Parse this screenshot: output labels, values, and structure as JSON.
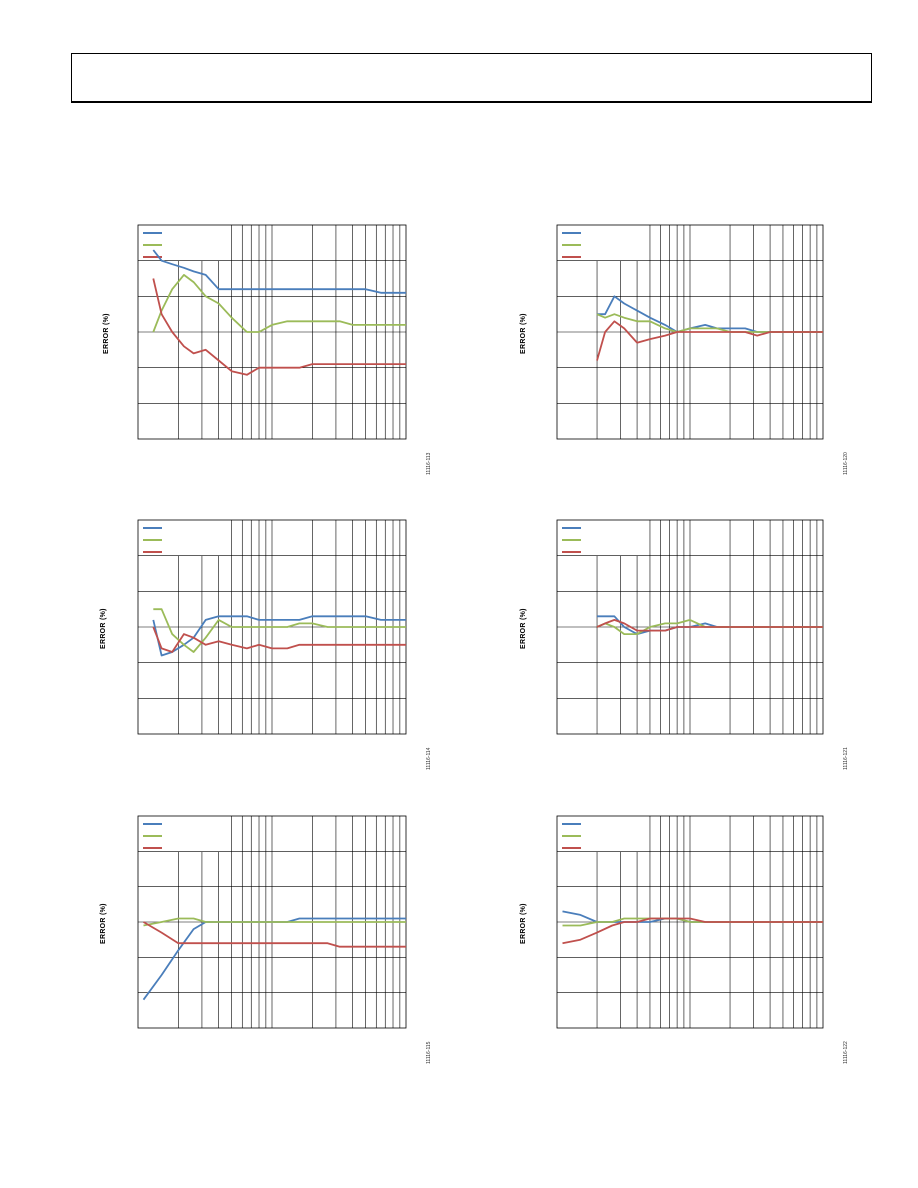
{
  "colors": {
    "blue": "#4a7ebb",
    "green": "#9bbb59",
    "red": "#c0504d",
    "grid": "#000000"
  },
  "charts_common": {
    "ylabel": "ERROR (%)",
    "legend_entries": 3
  },
  "chart_data": [
    {
      "type": "line",
      "ylabel": "ERROR (%)",
      "figure_id": "11116-113",
      "x_scale": "log",
      "xlim": [
        1,
        100
      ],
      "y_levels": 6,
      "series": [
        {
          "color": "blue",
          "x": [
            1.3,
            1.5,
            1.8,
            2.2,
            2.6,
            3.2,
            4,
            5,
            6.5,
            8,
            10,
            13,
            16,
            20,
            26,
            32,
            40,
            50,
            65,
            80,
            100
          ],
          "y": [
            0.23,
            0.2,
            0.19,
            0.18,
            0.17,
            0.16,
            0.12,
            0.12,
            0.12,
            0.12,
            0.12,
            0.12,
            0.12,
            0.12,
            0.12,
            0.12,
            0.12,
            0.12,
            0.11,
            0.11,
            0.11
          ]
        },
        {
          "color": "green",
          "x": [
            1.3,
            1.5,
            1.8,
            2.2,
            2.6,
            3.2,
            4,
            5,
            6.5,
            8,
            10,
            13,
            16,
            20,
            26,
            32,
            40,
            50,
            65,
            80,
            100
          ],
          "y": [
            0.0,
            0.06,
            0.12,
            0.16,
            0.14,
            0.1,
            0.08,
            0.04,
            0.0,
            0.0,
            0.02,
            0.03,
            0.03,
            0.03,
            0.03,
            0.03,
            0.02,
            0.02,
            0.02,
            0.02,
            0.02
          ]
        },
        {
          "color": "red",
          "x": [
            1.3,
            1.5,
            1.8,
            2.2,
            2.6,
            3.2,
            4,
            5,
            6.5,
            8,
            10,
            13,
            16,
            20,
            26,
            32,
            40,
            50,
            65,
            80,
            100
          ],
          "y": [
            0.15,
            0.05,
            0.0,
            -0.04,
            -0.06,
            -0.05,
            -0.08,
            -0.11,
            -0.12,
            -0.1,
            -0.1,
            -0.1,
            -0.1,
            -0.09,
            -0.09,
            -0.09,
            -0.09,
            -0.09,
            -0.09,
            -0.09,
            -0.09
          ]
        }
      ]
    },
    {
      "type": "line",
      "ylabel": "ERROR (%)",
      "figure_id": "11116-120",
      "x_scale": "log",
      "xlim": [
        1,
        100
      ],
      "y_levels": 6,
      "series": [
        {
          "color": "blue",
          "x": [
            2,
            2.3,
            2.7,
            3.2,
            4,
            5,
            6.5,
            8,
            10,
            13,
            16,
            20,
            26,
            32,
            40,
            50,
            65,
            80,
            100
          ],
          "y": [
            0.05,
            0.05,
            0.1,
            0.08,
            0.06,
            0.04,
            0.02,
            0.0,
            0.01,
            0.02,
            0.01,
            0.01,
            0.01,
            0.0,
            0.0,
            0.0,
            0.0,
            0.0,
            0.0
          ]
        },
        {
          "color": "green",
          "x": [
            2,
            2.3,
            2.7,
            3.2,
            4,
            5,
            6.5,
            8,
            10,
            13,
            16,
            20,
            26,
            32,
            40,
            50,
            65,
            80,
            100
          ],
          "y": [
            0.05,
            0.04,
            0.05,
            0.04,
            0.03,
            0.03,
            0.01,
            0.0,
            0.01,
            0.01,
            0.01,
            0.0,
            0.0,
            0.0,
            0.0,
            0.0,
            0.0,
            0.0,
            0.0
          ]
        },
        {
          "color": "red",
          "x": [
            2,
            2.3,
            2.7,
            3.2,
            4,
            5,
            6.5,
            8,
            10,
            13,
            16,
            20,
            26,
            32,
            40,
            50,
            65,
            80,
            100
          ],
          "y": [
            -0.08,
            0.0,
            0.03,
            0.01,
            -0.03,
            -0.02,
            -0.01,
            0.0,
            0.0,
            0.0,
            0.0,
            0.0,
            0.0,
            -0.01,
            0.0,
            0.0,
            0.0,
            0.0,
            0.0
          ]
        }
      ]
    },
    {
      "type": "line",
      "ylabel": "ERROR (%)",
      "figure_id": "11116-114",
      "x_scale": "log",
      "xlim": [
        1,
        100
      ],
      "y_levels": 6,
      "series": [
        {
          "color": "blue",
          "x": [
            1.3,
            1.5,
            1.8,
            2.2,
            2.6,
            3.2,
            4,
            5,
            6.5,
            8,
            10,
            13,
            16,
            20,
            26,
            32,
            40,
            50,
            65,
            80,
            100
          ],
          "y": [
            0.02,
            -0.08,
            -0.07,
            -0.05,
            -0.03,
            0.02,
            0.03,
            0.03,
            0.03,
            0.02,
            0.02,
            0.02,
            0.02,
            0.03,
            0.03,
            0.03,
            0.03,
            0.03,
            0.02,
            0.02,
            0.02
          ]
        },
        {
          "color": "green",
          "x": [
            1.3,
            1.5,
            1.8,
            2.2,
            2.6,
            3.2,
            4,
            5,
            6.5,
            8,
            10,
            13,
            16,
            20,
            26,
            32,
            40,
            50,
            65,
            80,
            100
          ],
          "y": [
            0.05,
            0.05,
            -0.02,
            -0.05,
            -0.07,
            -0.03,
            0.02,
            0.0,
            0.0,
            0.0,
            0.0,
            0.0,
            0.01,
            0.01,
            0.0,
            0.0,
            0.0,
            0.0,
            0.0,
            0.0,
            0.0
          ]
        },
        {
          "color": "red",
          "x": [
            1.3,
            1.5,
            1.8,
            2.2,
            2.6,
            3.2,
            4,
            5,
            6.5,
            8,
            10,
            13,
            16,
            20,
            26,
            32,
            40,
            50,
            65,
            80,
            100
          ],
          "y": [
            0.0,
            -0.06,
            -0.07,
            -0.02,
            -0.03,
            -0.05,
            -0.04,
            -0.05,
            -0.06,
            -0.05,
            -0.06,
            -0.06,
            -0.05,
            -0.05,
            -0.05,
            -0.05,
            -0.05,
            -0.05,
            -0.05,
            -0.05,
            -0.05
          ]
        }
      ]
    },
    {
      "type": "line",
      "ylabel": "ERROR (%)",
      "figure_id": "11116-121",
      "x_scale": "log",
      "xlim": [
        1,
        100
      ],
      "y_levels": 6,
      "series": [
        {
          "color": "blue",
          "x": [
            2,
            2.3,
            2.7,
            3.2,
            4,
            5,
            6.5,
            8,
            10,
            13,
            16,
            20,
            26,
            32,
            40,
            50,
            65,
            80,
            100
          ],
          "y": [
            0.03,
            0.03,
            0.03,
            0.0,
            -0.02,
            -0.01,
            -0.01,
            0.0,
            0.0,
            0.01,
            0.0,
            0.0,
            0.0,
            0.0,
            0.0,
            0.0,
            0.0,
            0.0,
            0.0
          ]
        },
        {
          "color": "green",
          "x": [
            2,
            2.3,
            2.7,
            3.2,
            4,
            5,
            6.5,
            8,
            10,
            13,
            16,
            20,
            26,
            32,
            40,
            50,
            65,
            80,
            100
          ],
          "y": [
            0.0,
            0.01,
            0.0,
            -0.02,
            -0.02,
            0.0,
            0.01,
            0.01,
            0.02,
            0.0,
            0.0,
            0.0,
            0.0,
            0.0,
            0.0,
            0.0,
            0.0,
            0.0,
            0.0
          ]
        },
        {
          "color": "red",
          "x": [
            2,
            2.3,
            2.7,
            3.2,
            4,
            5,
            6.5,
            8,
            10,
            13,
            16,
            20,
            26,
            32,
            40,
            50,
            65,
            80,
            100
          ],
          "y": [
            0.0,
            0.01,
            0.02,
            0.01,
            -0.01,
            -0.01,
            -0.01,
            0.0,
            0.0,
            0.0,
            0.0,
            0.0,
            0.0,
            0.0,
            0.0,
            0.0,
            0.0,
            0.0,
            0.0
          ]
        }
      ]
    },
    {
      "type": "line",
      "ylabel": "ERROR (%)",
      "figure_id": "11116-115",
      "x_scale": "log",
      "xlim": [
        1,
        100
      ],
      "y_levels": 6,
      "series": [
        {
          "color": "blue",
          "x": [
            1.1,
            1.5,
            2,
            2.6,
            3.2,
            4,
            5,
            6.5,
            8,
            10,
            13,
            16,
            20,
            26,
            32,
            40,
            50,
            65,
            80,
            100
          ],
          "y": [
            -0.22,
            -0.15,
            -0.08,
            -0.02,
            0.0,
            0.0,
            0.0,
            0.0,
            0.0,
            0.0,
            0.0,
            0.01,
            0.01,
            0.01,
            0.01,
            0.01,
            0.01,
            0.01,
            0.01,
            0.01
          ]
        },
        {
          "color": "green",
          "x": [
            1.1,
            1.5,
            2,
            2.6,
            3.2,
            4,
            5,
            6.5,
            8,
            10,
            13,
            16,
            20,
            26,
            32,
            40,
            50,
            65,
            80,
            100
          ],
          "y": [
            -0.01,
            0.0,
            0.01,
            0.01,
            0.0,
            0.0,
            0.0,
            0.0,
            0.0,
            0.0,
            0.0,
            0.0,
            0.0,
            0.0,
            0.0,
            0.0,
            0.0,
            0.0,
            0.0,
            0.0
          ]
        },
        {
          "color": "red",
          "x": [
            1.1,
            1.5,
            2,
            2.6,
            3.2,
            4,
            5,
            6.5,
            8,
            10,
            13,
            16,
            20,
            26,
            32,
            40,
            50,
            65,
            80,
            100
          ],
          "y": [
            0.0,
            -0.03,
            -0.06,
            -0.06,
            -0.06,
            -0.06,
            -0.06,
            -0.06,
            -0.06,
            -0.06,
            -0.06,
            -0.06,
            -0.06,
            -0.06,
            -0.07,
            -0.07,
            -0.07,
            -0.07,
            -0.07,
            -0.07
          ]
        }
      ]
    },
    {
      "type": "line",
      "ylabel": "ERROR (%)",
      "figure_id": "11116-122",
      "x_scale": "log",
      "xlim": [
        1,
        100
      ],
      "y_levels": 6,
      "series": [
        {
          "color": "blue",
          "x": [
            1.1,
            1.5,
            2,
            2.6,
            3.2,
            4,
            5,
            6.5,
            8,
            10,
            13,
            16,
            20,
            26,
            32,
            40,
            50,
            65,
            80,
            100
          ],
          "y": [
            0.03,
            0.02,
            0.0,
            0.0,
            0.0,
            0.0,
            0.0,
            0.01,
            0.01,
            0.0,
            0.0,
            0.0,
            0.0,
            0.0,
            0.0,
            0.0,
            0.0,
            0.0,
            0.0,
            0.0
          ]
        },
        {
          "color": "green",
          "x": [
            1.1,
            1.5,
            2,
            2.6,
            3.2,
            4,
            5,
            6.5,
            8,
            10,
            13,
            16,
            20,
            26,
            32,
            40,
            50,
            65,
            80,
            100
          ],
          "y": [
            -0.01,
            -0.01,
            0.0,
            0.0,
            0.01,
            0.01,
            0.01,
            0.01,
            0.01,
            0.0,
            0.0,
            0.0,
            0.0,
            0.0,
            0.0,
            0.0,
            0.0,
            0.0,
            0.0,
            0.0
          ]
        },
        {
          "color": "red",
          "x": [
            1.1,
            1.5,
            2,
            2.6,
            3.2,
            4,
            5,
            6.5,
            8,
            10,
            13,
            16,
            20,
            26,
            32,
            40,
            50,
            65,
            80,
            100
          ],
          "y": [
            -0.06,
            -0.05,
            -0.03,
            -0.01,
            0.0,
            0.0,
            0.01,
            0.01,
            0.01,
            0.01,
            0.0,
            0.0,
            0.0,
            0.0,
            0.0,
            0.0,
            0.0,
            0.0,
            0.0,
            0.0
          ]
        }
      ]
    }
  ]
}
